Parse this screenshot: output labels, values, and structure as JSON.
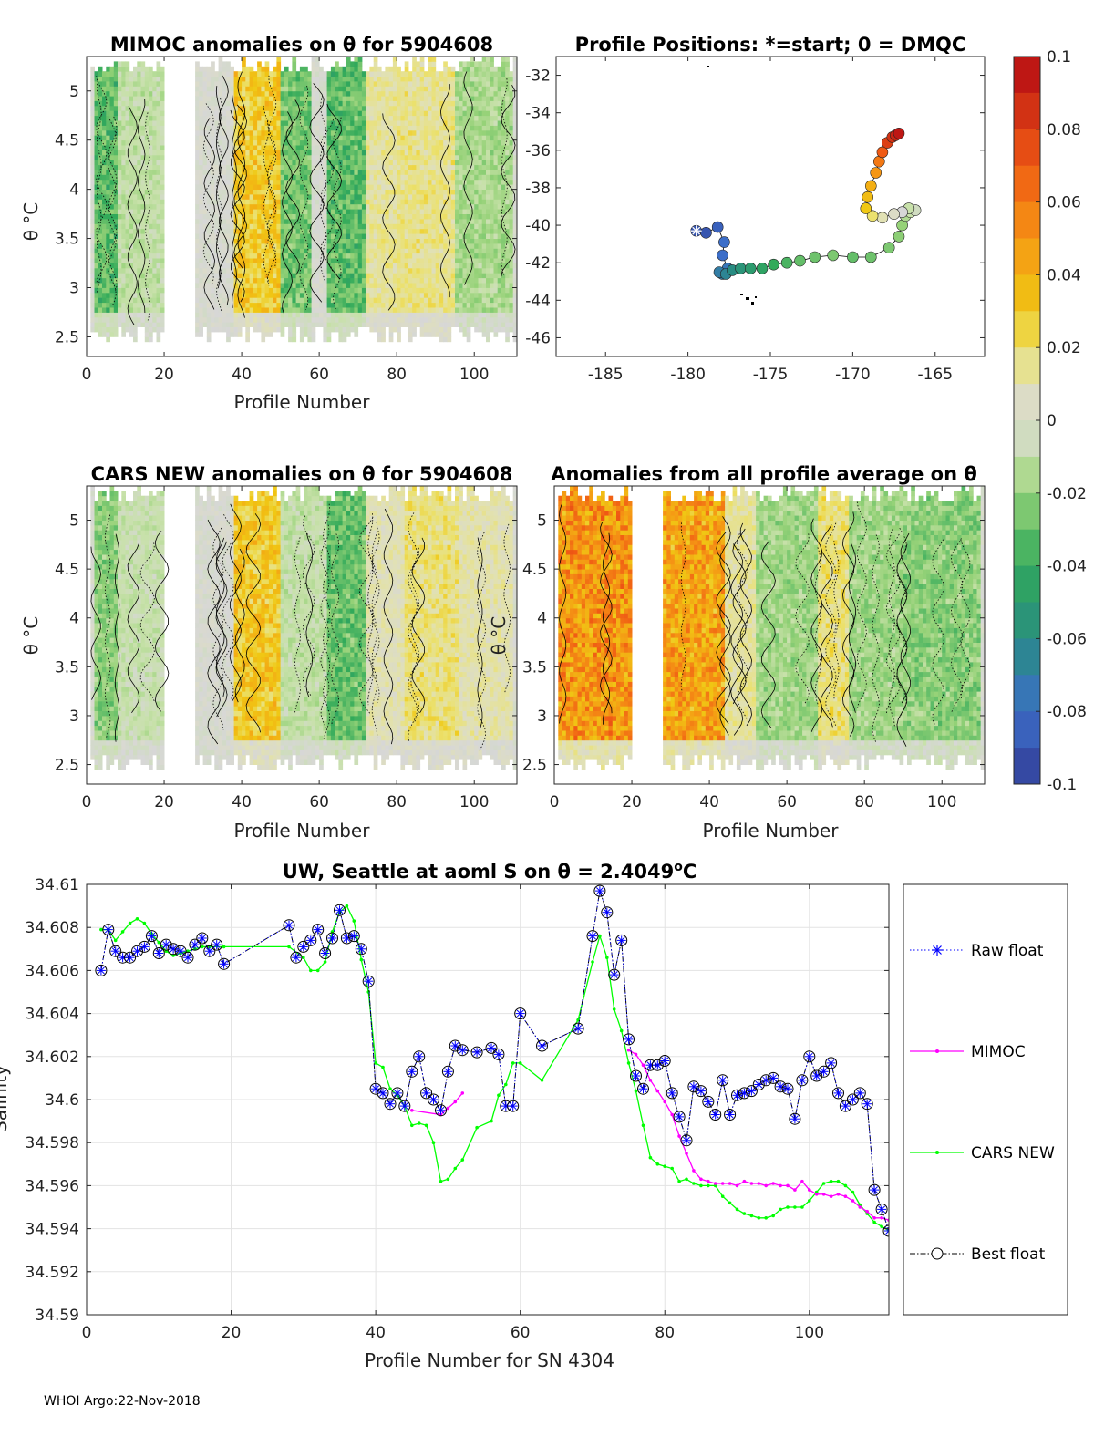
{
  "footer": "WHOI Argo:22-Nov-2018",
  "colorbar": {
    "tick_labels": [
      "0.1",
      "0.08",
      "0.06",
      "0.04",
      "0.02",
      "0",
      "-0.02",
      "-0.04",
      "-0.06",
      "-0.08",
      "-0.1"
    ],
    "range": [
      -0.1,
      0.1
    ]
  },
  "chart_data": [
    {
      "type": "heatmap",
      "title": "MIMOC anomalies on θ  for 5904608",
      "xlabel": "Profile Number",
      "ylabel": "θ °C",
      "xlim": [
        0,
        111
      ],
      "ylim": [
        2.3,
        5.35
      ],
      "xticks": [
        "0",
        "20",
        "40",
        "60",
        "80",
        "100"
      ],
      "yticks": [
        "2.5",
        "3",
        "3.5",
        "4",
        "4.5",
        "5"
      ],
      "bands": [
        {
          "x": [
            2,
            8
          ],
          "value": -0.035
        },
        {
          "x": [
            8,
            20
          ],
          "value": -0.012
        },
        {
          "x": [
            38,
            50
          ],
          "value": 0.032
        },
        {
          "x": [
            50,
            58
          ],
          "value": -0.03
        },
        {
          "x": [
            62,
            72
          ],
          "value": -0.035
        },
        {
          "x": [
            72,
            80
          ],
          "value": 0.015
        },
        {
          "x": [
            80,
            95
          ],
          "value": 0.018
        },
        {
          "x": [
            95,
            110
          ],
          "value": -0.018
        }
      ]
    },
    {
      "type": "scatter",
      "title": "Profile Positions: *=start; 0 = DMQC",
      "xlim": [
        -188,
        -162
      ],
      "ylim": [
        -47,
        -31
      ],
      "xticks": [
        "-185",
        "-180",
        "-175",
        "-170",
        "-165"
      ],
      "yticks": [
        "-32",
        "-34",
        "-36",
        "-38",
        "-40",
        "-42",
        "-44",
        "-46"
      ],
      "lon": [
        -179.5,
        -178.9,
        -178.2,
        -177.8,
        -177.9,
        -177.6,
        -177.9,
        -178.1,
        -177.7,
        -177.3,
        -176.8,
        -176.2,
        -175.5,
        -174.8,
        -174.0,
        -173.2,
        -172.3,
        -171.2,
        -170.0,
        -168.9,
        -167.8,
        -167.2,
        -167.0,
        -166.8,
        -166.5,
        -166.2,
        -166.6,
        -167.0,
        -167.5,
        -168.2,
        -168.8,
        -169.2,
        -169.1,
        -168.9,
        -168.6,
        -168.4,
        -168.2,
        -167.9,
        -167.6,
        -167.4,
        -167.2
      ],
      "lat": [
        -40.3,
        -40.4,
        -40.1,
        -40.9,
        -41.6,
        -42.3,
        -42.6,
        -42.5,
        -42.6,
        -42.4,
        -42.3,
        -42.3,
        -42.3,
        -42.1,
        -42.0,
        -41.9,
        -41.7,
        -41.6,
        -41.7,
        -41.7,
        -41.2,
        -40.6,
        -40.0,
        -39.5,
        -39.3,
        -39.2,
        -39.1,
        -39.3,
        -39.4,
        -39.6,
        -39.5,
        -39.1,
        -38.5,
        -37.9,
        -37.2,
        -36.6,
        -36.1,
        -35.6,
        -35.3,
        -35.2,
        -35.1
      ],
      "value": [
        -0.09,
        -0.09,
        -0.085,
        -0.08,
        -0.08,
        -0.075,
        -0.07,
        -0.07,
        -0.065,
        -0.06,
        -0.055,
        -0.05,
        -0.045,
        -0.04,
        -0.035,
        -0.03,
        -0.028,
        -0.025,
        -0.03,
        -0.028,
        -0.025,
        -0.022,
        -0.02,
        -0.015,
        -0.01,
        -0.005,
        -0.01,
        0.0,
        0.005,
        0.01,
        0.02,
        0.03,
        0.035,
        0.04,
        0.05,
        0.06,
        0.07,
        0.08,
        0.085,
        0.09,
        0.095
      ]
    },
    {
      "type": "heatmap",
      "title": "CARS NEW anomalies on θ for 5904608",
      "xlabel": "Profile Number",
      "ylabel": "θ °C",
      "xlim": [
        0,
        111
      ],
      "ylim": [
        2.3,
        5.35
      ],
      "xticks": [
        "0",
        "20",
        "40",
        "60",
        "80",
        "100"
      ],
      "yticks": [
        "2.5",
        "3",
        "3.5",
        "4",
        "4.5",
        "5"
      ],
      "bands": [
        {
          "x": [
            2,
            8
          ],
          "value": -0.025
        },
        {
          "x": [
            8,
            20
          ],
          "value": -0.01
        },
        {
          "x": [
            38,
            50
          ],
          "value": 0.033
        },
        {
          "x": [
            50,
            62
          ],
          "value": -0.012
        },
        {
          "x": [
            62,
            72
          ],
          "value": -0.032
        },
        {
          "x": [
            72,
            82
          ],
          "value": 0.01
        },
        {
          "x": [
            82,
            96
          ],
          "value": 0.02
        },
        {
          "x": [
            96,
            110
          ],
          "value": 0.012
        }
      ]
    },
    {
      "type": "heatmap",
      "title": "Anomalies from all profile average on θ",
      "xlabel": "Profile Number",
      "ylabel": "θ °C",
      "xlim": [
        0,
        111
      ],
      "ylim": [
        2.3,
        5.35
      ],
      "xticks": [
        "0",
        "20",
        "40",
        "60",
        "80",
        "100"
      ],
      "yticks": [
        "2.5",
        "3",
        "3.5",
        "4",
        "4.5",
        "5"
      ],
      "bands": [
        {
          "x": [
            1,
            20
          ],
          "value": 0.055
        },
        {
          "x": [
            28,
            44
          ],
          "value": 0.05
        },
        {
          "x": [
            44,
            52
          ],
          "value": 0.015
        },
        {
          "x": [
            52,
            68
          ],
          "value": -0.02
        },
        {
          "x": [
            68,
            76
          ],
          "value": 0.02
        },
        {
          "x": [
            76,
            90
          ],
          "value": -0.02
        },
        {
          "x": [
            90,
            110
          ],
          "value": -0.025
        }
      ]
    },
    {
      "type": "line",
      "title": "UW, Seattle at aoml S on θ = 2.4049°C",
      "title_prefix": "UW, Seattle at aoml S on θ = 2.4049",
      "title_sup": "o",
      "title_suffix": "C",
      "xlabel": "Profile Number for SN 4304",
      "ylabel": "Salinity",
      "xlim": [
        0,
        111
      ],
      "ylim": [
        34.59,
        34.61
      ],
      "xticks": [
        "0",
        "20",
        "40",
        "60",
        "80",
        "100"
      ],
      "yticks": [
        "34.59",
        "34.592",
        "34.594",
        "34.596",
        "34.598",
        "34.6",
        "34.602",
        "34.604",
        "34.606",
        "34.608",
        "34.61"
      ],
      "legend": [
        "Raw float",
        "MIMOC",
        "CARS NEW",
        "Best float"
      ],
      "series": [
        {
          "name": "Best float",
          "x": [
            2,
            3,
            4,
            5,
            6,
            7,
            8,
            9,
            10,
            11,
            12,
            13,
            14,
            15,
            16,
            17,
            18,
            19,
            28,
            29,
            30,
            31,
            32,
            33,
            34,
            35,
            36,
            37,
            38,
            39,
            40,
            41,
            42,
            43,
            44,
            45,
            46,
            47,
            48,
            49,
            50,
            51,
            52,
            54,
            56,
            57,
            58,
            59,
            60,
            63,
            68,
            70,
            71,
            72,
            73,
            74,
            75,
            76,
            77,
            78,
            79,
            80,
            81,
            82,
            83,
            84,
            85,
            86,
            87,
            88,
            89,
            90,
            91,
            92,
            93,
            94,
            95,
            96,
            97,
            98,
            99,
            100,
            101,
            102,
            103,
            104,
            105,
            106,
            107,
            108,
            109,
            110,
            111
          ],
          "y": [
            34.606,
            34.6079,
            34.6069,
            34.6066,
            34.6066,
            34.6069,
            34.6071,
            34.6076,
            34.6068,
            34.6072,
            34.607,
            34.6069,
            34.6066,
            34.6072,
            34.6075,
            34.6069,
            34.6072,
            34.6063,
            34.6081,
            34.6066,
            34.6071,
            34.6074,
            34.6079,
            34.6068,
            34.6075,
            34.6088,
            34.6075,
            34.6076,
            34.607,
            34.6055,
            34.6005,
            34.6003,
            34.5998,
            34.6003,
            34.5997,
            34.6013,
            34.602,
            34.6003,
            34.6,
            34.5995,
            34.6013,
            34.6025,
            34.6023,
            34.6022,
            34.6024,
            34.6021,
            34.5997,
            34.5997,
            34.604,
            34.6025,
            34.6033,
            34.6076,
            34.6097,
            34.6087,
            34.6058,
            34.6074,
            34.6028,
            34.6011,
            34.6005,
            34.6016,
            34.6016,
            34.6018,
            34.6003,
            34.5992,
            34.5981,
            34.6006,
            34.6004,
            34.5999,
            34.5993,
            34.6009,
            34.5993,
            34.6002,
            34.6003,
            34.6004,
            34.6007,
            34.6009,
            34.601,
            34.6006,
            34.6005,
            34.5991,
            34.6009,
            34.602,
            34.6011,
            34.6013,
            34.6017,
            34.6003,
            34.5997,
            34.6,
            34.6003,
            34.5998,
            34.5958,
            34.5949,
            34.5939
          ]
        },
        {
          "name": "MIMOC",
          "x": [
            45,
            49,
            50,
            51,
            52,
            75,
            76,
            77,
            78,
            79,
            80,
            81,
            82,
            83,
            84,
            85,
            86,
            87,
            88,
            89,
            90,
            91,
            92,
            93,
            94,
            95,
            96,
            97,
            98,
            99,
            100,
            101,
            102,
            103,
            104,
            105,
            106,
            107,
            108,
            109,
            110,
            111
          ],
          "y": [
            34.5995,
            34.5993,
            34.5996,
            34.5999,
            34.6003,
            34.6023,
            34.6021,
            34.6016,
            34.6009,
            34.6004,
            34.5999,
            34.5993,
            34.5983,
            34.5975,
            34.5967,
            34.5963,
            34.5962,
            34.5961,
            34.5961,
            34.5961,
            34.596,
            34.5962,
            34.5961,
            34.5961,
            34.596,
            34.5961,
            34.596,
            34.596,
            34.5958,
            34.5962,
            34.5958,
            34.5956,
            34.5956,
            34.5955,
            34.5956,
            34.5955,
            34.5953,
            34.595,
            34.5948,
            34.5945,
            34.5945,
            34.5944
          ]
        },
        {
          "name": "CARS NEW",
          "x": [
            2,
            3,
            4,
            5,
            6,
            7,
            8,
            9,
            10,
            11,
            12,
            13,
            14,
            15,
            16,
            17,
            19,
            28,
            30,
            31,
            32,
            33,
            34,
            35,
            36,
            37,
            38,
            39,
            40,
            41,
            42,
            43,
            44,
            45,
            46,
            47,
            48,
            49,
            50,
            51,
            52,
            54,
            56,
            57,
            58,
            59,
            60,
            63,
            68,
            70,
            71,
            72,
            73,
            74,
            75,
            76,
            77,
            78,
            79,
            80,
            81,
            82,
            83,
            84,
            85,
            86,
            87,
            88,
            89,
            90,
            91,
            92,
            93,
            94,
            95,
            96,
            97,
            98,
            99,
            100,
            101,
            102,
            103,
            104,
            105,
            106,
            107,
            108,
            109,
            110,
            111
          ],
          "y": [
            34.6079,
            34.6079,
            34.6074,
            34.6078,
            34.6082,
            34.6084,
            34.6082,
            34.6077,
            34.6073,
            34.6069,
            34.6067,
            34.6068,
            34.6069,
            34.607,
            34.6071,
            34.6071,
            34.6071,
            34.6071,
            34.6066,
            34.606,
            34.606,
            34.6064,
            34.6078,
            34.6087,
            34.609,
            34.6083,
            34.6065,
            34.605,
            34.6017,
            34.6015,
            34.6005,
            34.6002,
            34.5997,
            34.5988,
            34.5989,
            34.5988,
            34.598,
            34.5962,
            34.5963,
            34.5968,
            34.5972,
            34.5987,
            34.599,
            34.6002,
            34.6007,
            34.6017,
            34.6017,
            34.6009,
            34.6037,
            34.6064,
            34.6076,
            34.6066,
            34.6042,
            34.6032,
            34.6017,
            34.6004,
            34.5988,
            34.5973,
            34.597,
            34.5969,
            34.5968,
            34.5962,
            34.5963,
            34.5961,
            34.596,
            34.596,
            34.596,
            34.5955,
            34.5952,
            34.5949,
            34.5947,
            34.5946,
            34.5945,
            34.5945,
            34.5946,
            34.5949,
            34.595,
            34.595,
            34.595,
            34.5953,
            34.5957,
            34.5961,
            34.5962,
            34.5962,
            34.596,
            34.5957,
            34.5951,
            34.5947,
            34.5943,
            34.5941,
            34.5939
          ]
        }
      ]
    }
  ]
}
